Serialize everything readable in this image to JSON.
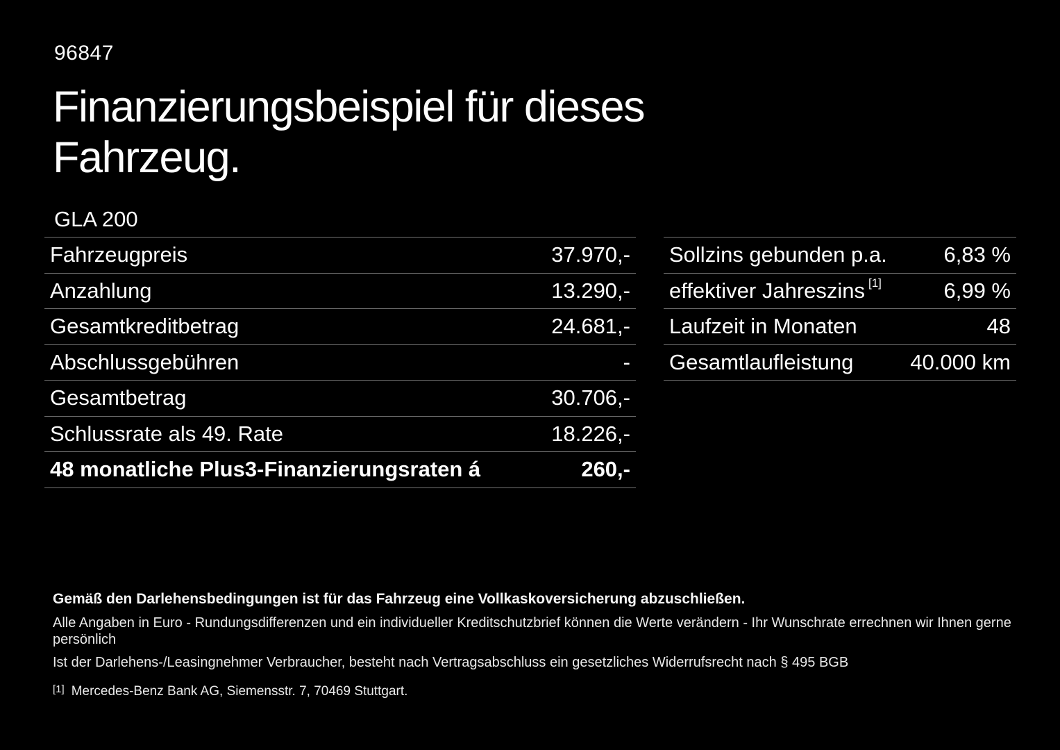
{
  "page": {
    "background": "#000000",
    "text_color": "#fdfdfd",
    "divider_color": "#757575"
  },
  "header": {
    "doc_number": "96847",
    "title": "Finanzierungsbeispiel für dieses Fahrzeug.",
    "model": "GLA 200"
  },
  "left_table": {
    "rows": [
      {
        "label": "Fahrzeugpreis",
        "value": "37.970,-"
      },
      {
        "label": "Anzahlung",
        "value": "13.290,-"
      },
      {
        "label": "Gesamtkreditbetrag",
        "value": "24.681,-"
      },
      {
        "label": "Abschlussgebühren",
        "value": "-"
      },
      {
        "label": "Gesamtbetrag",
        "value": "30.706,-"
      },
      {
        "label": "Schlussrate als 49. Rate",
        "value": "18.226,-"
      },
      {
        "label": "48 monatliche Plus3-Finanzierungsraten á",
        "value": "260,-"
      }
    ]
  },
  "right_table": {
    "rows": [
      {
        "label": "Sollzins gebunden p.a.",
        "value": "6,83 %"
      },
      {
        "label": "effektiver Jahreszins",
        "sup": "[1]",
        "value": "6,99 %"
      },
      {
        "label": "Laufzeit in Monaten",
        "value": "48"
      },
      {
        "label": "Gesamtlaufleistung",
        "value": "40.000 km"
      }
    ]
  },
  "footer": {
    "insurance_note": "Gemäß den Darlehensbedingungen ist für das Fahrzeug eine Vollkaskoversicherung abzuschließen.",
    "note_line2": "Alle Angaben in Euro - Rundungsdifferenzen und ein individueller Kreditschutzbrief können die Werte verändern - Ihr Wunschrate errechnen wir Ihnen gerne persönlich",
    "note_line3": "Ist der Darlehens-/Leasingnehmer Verbraucher, besteht nach Vertragsabschluss ein gesetzliches Widerrufsrecht nach § 495 BGB",
    "footnote_marker": "[1]",
    "footnote_text": "Mercedes-Benz Bank AG, Siemensstr. 7, 70469 Stuttgart."
  }
}
